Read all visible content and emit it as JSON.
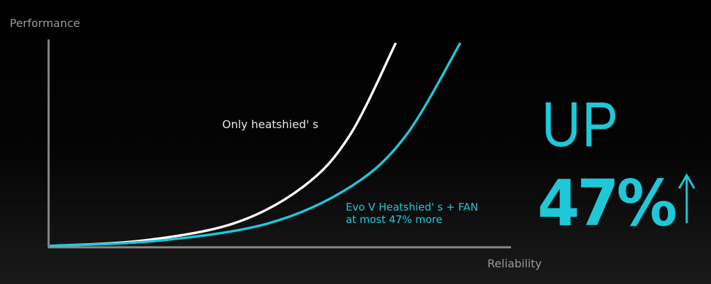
{
  "chart_data": {
    "type": "line",
    "xlabel": "Reliability",
    "ylabel": "Performance",
    "xlim": [
      0,
      100
    ],
    "ylim": [
      0,
      100
    ],
    "grid": false,
    "series": [
      {
        "name": "Only heatshied' s",
        "color": "#ffffff",
        "x": [
          0,
          20,
          40,
          55,
          65,
          75
        ],
        "y": [
          0,
          2.6,
          11.2,
          29.3,
          54.4,
          100
        ]
      },
      {
        "name": "Evo V Heatshied' s + FAN",
        "color": "#1ec8d8",
        "x": [
          0,
          23.7,
          47.5,
          65.3,
          77.2,
          89
        ],
        "y": [
          0,
          2.6,
          11.2,
          29.3,
          54.4,
          100
        ]
      }
    ],
    "annotations": [
      "Only heatshied' s",
      "Evo V Heatshied' s + FAN",
      "at most 47% more"
    ]
  },
  "callout": {
    "up": "UP",
    "percent": "47%",
    "arrow_icon": "arrow-up-icon",
    "color": "#1ec8d8"
  }
}
